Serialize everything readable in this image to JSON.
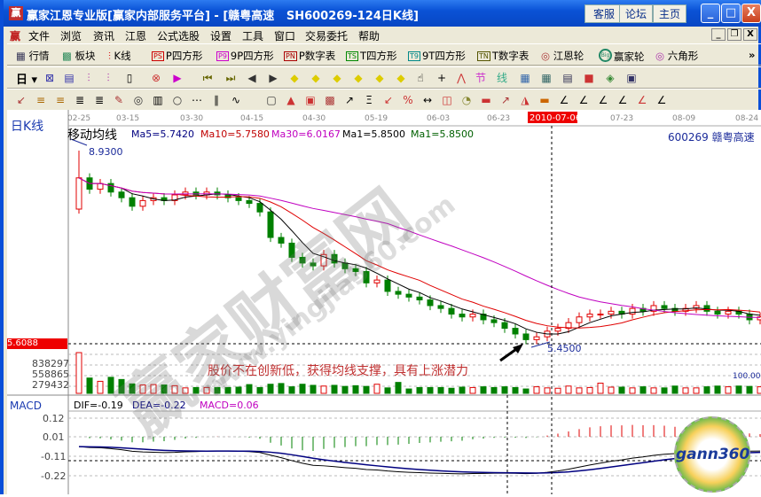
{
  "window": {
    "title": "赢家江恩专业版[赢家内部服务平台] - [赣粤高速   SH600269-124日K线]",
    "links": [
      "客服",
      "论坛",
      "主页"
    ],
    "controls": [
      "_",
      "□",
      "X"
    ]
  },
  "menu": {
    "items": [
      "文件",
      "浏览",
      "资讯",
      "江恩",
      "公式选股",
      "设置",
      "工具",
      "窗口",
      "交易委托",
      "帮助"
    ]
  },
  "toolbar1": {
    "items": [
      {
        "badge": "",
        "label": "行情"
      },
      {
        "badge": "",
        "label": "板块"
      },
      {
        "badge": "",
        "label": "K线"
      },
      {
        "badge": "PS",
        "label": "P四方形"
      },
      {
        "badge": "P9",
        "label": "9P四方形"
      },
      {
        "badge": "PN",
        "label": "P数字表"
      },
      {
        "badge": "TS",
        "label": "T四方形"
      },
      {
        "badge": "T9",
        "label": "9T四方形"
      },
      {
        "badge": "TN",
        "label": "T数字表"
      },
      {
        "badge": "",
        "label": "江恩轮"
      },
      {
        "badge": "Big",
        "label": "赢家轮"
      },
      {
        "badge": "",
        "label": "六角形"
      }
    ],
    "more": "»"
  },
  "toolbar2": {
    "period": "日"
  },
  "chart": {
    "period_label": "日K线",
    "indicator_title": "移动均线",
    "ma": [
      {
        "label": "Ma5=5.7420",
        "color": "#000080"
      },
      {
        "label": "Ma10=5.7580",
        "color": "#c00000"
      },
      {
        "label": "Ma30=6.0167",
        "color": "#c000c0"
      },
      {
        "label": "Ma1=5.8500",
        "color": "#000000"
      },
      {
        "label": "Ma1=5.8500",
        "color": "#006000"
      }
    ],
    "stock": "600269 赣粤高速",
    "date_ticks": [
      "02-25",
      "03-15",
      "03-30",
      "04-15",
      "04-30",
      "05-19",
      "06-03",
      "06-23",
      "07-23",
      "08-09",
      "08-24"
    ],
    "cursor_date": "2010-07-06",
    "high_label": "8.9300",
    "low_label": "5.4500",
    "cursor_price": "5.6088",
    "annotation": "股价不在创新低，获得均线支撑，具有上涨潜力",
    "volume_ticks": [
      "838297",
      "558865",
      "279432"
    ],
    "percent": "100.00%",
    "macd": {
      "name": "MACD",
      "dif": "DIF=-0.19",
      "dea": "DEA=-0.22",
      "macd": "MACD=0.06",
      "ticks": [
        "0.12",
        "0.01",
        "-0.11",
        "-0.22"
      ]
    },
    "watermark": "赢家财富网",
    "watermark_url": "www.yingjia360.com",
    "logo": "gann360",
    "colors": {
      "up": "#e00000",
      "down": "#008000"
    }
  },
  "chart_data": {
    "type": "candlestick",
    "closes": [
      8.45,
      8.25,
      8.35,
      8.2,
      8.1,
      7.95,
      8.05,
      8.1,
      8.05,
      8.15,
      8.2,
      8.15,
      8.2,
      8.15,
      8.1,
      8.05,
      8.0,
      7.85,
      7.4,
      7.3,
      7.05,
      6.95,
      6.9,
      7.1,
      6.95,
      6.85,
      6.8,
      6.6,
      6.65,
      6.45,
      6.4,
      6.35,
      6.3,
      6.2,
      6.15,
      6.05,
      6.0,
      6.05,
      5.95,
      5.9,
      5.8,
      5.7,
      5.6,
      5.65,
      5.75,
      5.8,
      5.9,
      6.0,
      6.05,
      6.05,
      6.1,
      6.05,
      6.15,
      6.1,
      6.2,
      6.15,
      6.1,
      6.15,
      6.2,
      6.1,
      6.05,
      6.1,
      6.05,
      5.95,
      6.0
    ],
    "volumes": [
      1117000,
      420000,
      330000,
      440000,
      380000,
      260000,
      230000,
      240000,
      230000,
      210000,
      150000,
      160000,
      160000,
      160000,
      160000,
      170000,
      240000,
      160000,
      250000,
      270000,
      180000,
      250000,
      220000,
      200000,
      220000,
      190000,
      210000,
      190000,
      250000,
      150000,
      300000,
      120000,
      160000,
      160000,
      160000,
      140000,
      170000,
      160000,
      180000,
      160000,
      180000,
      160000,
      120000,
      180000,
      150000,
      140000,
      200000,
      150000,
      160000,
      280000,
      170000,
      170000,
      150000,
      180000,
      150000,
      150000,
      200000,
      150000,
      150000,
      180000,
      200000,
      180000,
      200000,
      190000,
      180000
    ],
    "price_axis": {
      "max": 8.93,
      "min": 5.45
    },
    "volume_axis": [
      279432,
      558865,
      838297
    ],
    "macd_axis": [
      -0.22,
      -0.11,
      0.01,
      0.12
    ]
  }
}
